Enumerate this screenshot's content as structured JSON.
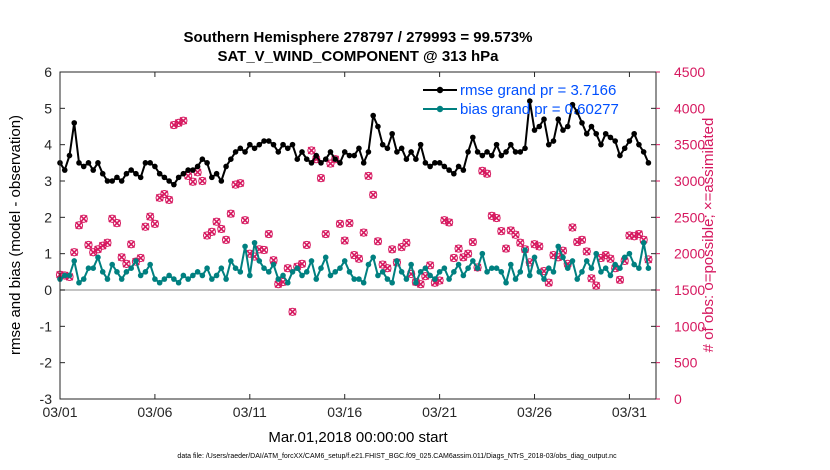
{
  "chart_data": {
    "type": "line",
    "title_line1": "Southern Hemisphere 278797 / 279993 = 99.573%",
    "title_line2": "SAT_V_WIND_COMPONENT @ 313 hPa",
    "xlabel": "Mar.01,2018 00:00:00 start",
    "ylabel_left": "rmse and bias (model - observation)",
    "ylabel_right": "# of obs: o=possible; ×=assimilated",
    "footnote": "data file: /Users/raeder/DAI/ATM_forcXX/CAM6_setup/f.e21.FHIST_BGC.f09_025.CAM6assim.011/Diags_NTrS_2018-03/obs_diag_output.nc",
    "x_range": [
      1,
      32.4
    ],
    "x_ticks": [
      1,
      6,
      11,
      16,
      21,
      26,
      31
    ],
    "x_tick_labels": [
      "03/01",
      "03/06",
      "03/11",
      "03/16",
      "03/21",
      "03/26",
      "03/31"
    ],
    "ylim_left": [
      -3,
      6
    ],
    "y_ticks_left": [
      -3,
      -2,
      -1,
      0,
      1,
      2,
      3,
      4,
      5,
      6
    ],
    "ylim_right": [
      0,
      4500
    ],
    "y_ticks_right": [
      0,
      500,
      1000,
      1500,
      2000,
      2500,
      3000,
      3500,
      4000,
      4500
    ],
    "legend": [
      {
        "label": "rmse grand pr = 3.7166",
        "color": "#000000"
      },
      {
        "label": "bias grand pr = 0.60277",
        "color": "#008080"
      }
    ],
    "colors": {
      "rmse": "#000000",
      "bias": "#008080",
      "obs": "#d6185f",
      "zero": "#b0b0b0",
      "right_axis": "#d6185f"
    },
    "x": [
      1.0,
      1.25,
      1.5,
      1.75,
      2.0,
      2.25,
      2.5,
      2.75,
      3.0,
      3.25,
      3.5,
      3.75,
      4.0,
      4.25,
      4.5,
      4.75,
      5.0,
      5.25,
      5.5,
      5.75,
      6.0,
      6.25,
      6.5,
      6.75,
      7.0,
      7.25,
      7.5,
      7.75,
      8.0,
      8.25,
      8.5,
      8.75,
      9.0,
      9.25,
      9.5,
      9.75,
      10.0,
      10.25,
      10.5,
      10.75,
      11.0,
      11.25,
      11.5,
      11.75,
      12.0,
      12.25,
      12.5,
      12.75,
      13.0,
      13.25,
      13.5,
      13.75,
      14.0,
      14.25,
      14.5,
      14.75,
      15.0,
      15.25,
      15.5,
      15.75,
      16.0,
      16.25,
      16.5,
      16.75,
      17.0,
      17.25,
      17.5,
      17.75,
      18.0,
      18.25,
      18.5,
      18.75,
      19.0,
      19.25,
      19.5,
      19.75,
      20.0,
      20.25,
      20.5,
      20.75,
      21.0,
      21.25,
      21.5,
      21.75,
      22.0,
      22.25,
      22.5,
      22.75,
      23.0,
      23.25,
      23.5,
      23.75,
      24.0,
      24.25,
      24.5,
      24.75,
      25.0,
      25.25,
      25.5,
      25.75,
      26.0,
      26.25,
      26.5,
      26.75,
      27.0,
      27.25,
      27.5,
      27.75,
      28.0,
      28.25,
      28.5,
      28.75,
      29.0,
      29.25,
      29.5,
      29.75,
      30.0,
      30.25,
      30.5,
      30.75,
      31.0,
      31.25,
      31.5,
      31.75,
      32.0
    ],
    "series": [
      {
        "name": "rmse",
        "values": [
          3.5,
          3.3,
          3.7,
          4.6,
          3.5,
          3.4,
          3.5,
          3.3,
          3.5,
          3.2,
          3.0,
          3.0,
          3.1,
          3.0,
          3.2,
          3.3,
          3.2,
          3.1,
          3.5,
          3.5,
          3.4,
          3.2,
          3.1,
          3.0,
          2.9,
          3.1,
          3.2,
          3.3,
          3.3,
          3.4,
          3.6,
          3.5,
          3.1,
          3.2,
          3.0,
          3.4,
          3.6,
          3.8,
          3.9,
          3.8,
          4.0,
          3.9,
          4.0,
          4.1,
          4.1,
          4.0,
          3.8,
          4.0,
          3.9,
          4.0,
          3.6,
          3.8,
          3.6,
          3.5,
          3.7,
          3.5,
          3.6,
          3.8,
          3.6,
          3.5,
          3.8,
          3.7,
          3.7,
          3.9,
          3.5,
          3.8,
          4.8,
          4.5,
          4.0,
          3.9,
          4.3,
          3.8,
          3.9,
          3.6,
          3.8,
          3.6,
          4.0,
          3.5,
          3.4,
          3.5,
          3.5,
          3.4,
          3.3,
          3.2,
          3.4,
          3.3,
          3.8,
          4.2,
          3.8,
          3.7,
          3.8,
          3.7,
          4.0,
          3.7,
          3.8,
          4.0,
          3.8,
          3.8,
          3.9,
          5.2,
          4.4,
          4.5,
          4.7,
          4.0,
          4.1,
          4.7,
          4.4,
          4.5,
          5.1,
          4.9,
          4.6,
          4.3,
          4.5,
          4.3,
          4.0,
          4.3,
          4.2,
          4.1,
          3.7,
          3.9,
          4.1,
          4.3,
          4.0,
          3.8,
          3.5
        ]
      },
      {
        "name": "bias",
        "values": [
          0.3,
          0.4,
          0.4,
          0.8,
          0.2,
          0.3,
          0.6,
          0.6,
          0.9,
          0.5,
          0.3,
          0.7,
          0.5,
          0.3,
          0.5,
          0.6,
          0.8,
          0.4,
          0.5,
          0.7,
          0.3,
          0.2,
          0.3,
          0.4,
          0.3,
          0.2,
          0.4,
          0.3,
          0.4,
          0.5,
          0.4,
          0.6,
          0.3,
          0.4,
          0.6,
          0.3,
          0.8,
          0.6,
          0.5,
          1.2,
          0.4,
          1.3,
          0.8,
          0.6,
          0.5,
          0.7,
          0.3,
          0.4,
          0.2,
          0.5,
          0.6,
          0.4,
          0.5,
          0.8,
          0.3,
          0.6,
          0.9,
          0.4,
          0.5,
          0.6,
          0.8,
          0.5,
          0.3,
          0.3,
          0.2,
          0.7,
          0.9,
          0.4,
          0.5,
          0.3,
          0.2,
          0.8,
          0.5,
          0.3,
          0.7,
          0.2,
          0.5,
          0.6,
          0.4,
          0.3,
          0.5,
          0.6,
          0.3,
          0.5,
          0.7,
          0.4,
          0.6,
          0.8,
          0.6,
          1.0,
          0.5,
          0.6,
          0.6,
          0.5,
          0.2,
          0.7,
          0.3,
          0.5,
          1.1,
          0.4,
          0.9,
          0.5,
          0.3,
          0.6,
          0.5,
          1.2,
          0.9,
          0.6,
          0.8,
          0.3,
          0.5,
          0.8,
          0.6,
          1.0,
          0.5,
          0.6,
          0.4,
          0.7,
          0.6,
          0.9,
          1.0,
          0.7,
          0.6,
          1.3,
          0.6
        ]
      },
      {
        "name": "obs_assimilated",
        "values": [
          1710,
          1700,
          1680,
          2020,
          2390,
          2480,
          2120,
          2020,
          2060,
          2110,
          2150,
          2480,
          2420,
          1950,
          1860,
          2130,
          1890,
          1940,
          2370,
          2510,
          2410,
          2770,
          2820,
          2740,
          3770,
          3800,
          3830,
          3070,
          2990,
          3120,
          3000,
          2250,
          2300,
          2440,
          2340,
          2190,
          2550,
          2950,
          2970,
          2460,
          2000,
          1960,
          2060,
          2050,
          2270,
          1910,
          1580,
          1610,
          1800,
          1200,
          1820,
          1860,
          2120,
          3420,
          3300,
          3040,
          2270,
          3240,
          3300,
          2410,
          2180,
          2420,
          1980,
          1930,
          2290,
          3070,
          2810,
          2170,
          1850,
          1800,
          2060,
          1880,
          2090,
          2150,
          1720,
          1610,
          1580,
          1690,
          1840,
          1600,
          1630,
          2460,
          2430,
          1940,
          2070,
          1950,
          2000,
          2160,
          1810,
          3140,
          3100,
          2520,
          2490,
          2310,
          2070,
          2320,
          2260,
          2150,
          2060,
          1880,
          2130,
          2100,
          1760,
          1600,
          1980,
          1950,
          2040,
          1860,
          2360,
          2160,
          2190,
          2030,
          1660,
          1560,
          1940,
          1980,
          1930,
          1800,
          1640,
          1900,
          2250,
          2240,
          2270,
          2190,
          1920
        ]
      }
    ]
  }
}
